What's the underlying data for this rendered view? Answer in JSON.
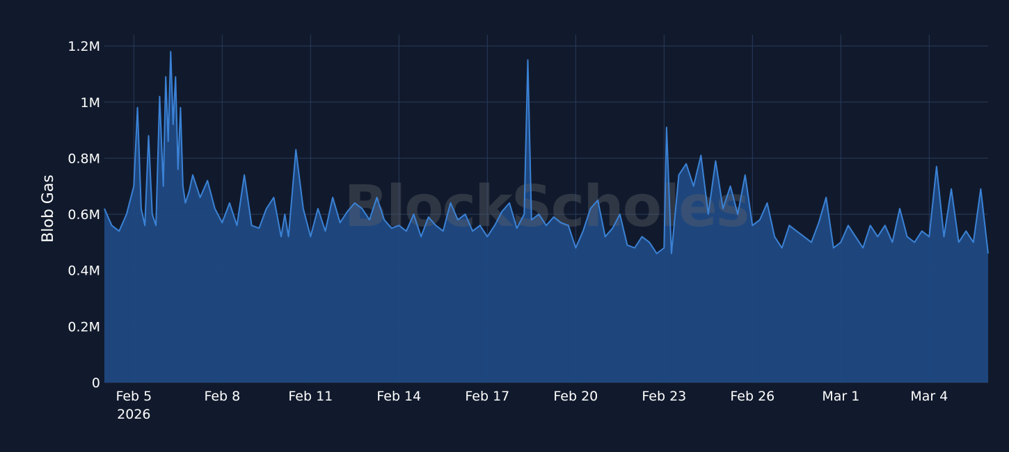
{
  "chart_data": {
    "type": "area",
    "watermark": "BlockScholes",
    "ylabel": "Blob Gas",
    "xlabel": "",
    "title": "",
    "grid": true,
    "ylim": [
      0,
      1240000
    ],
    "xlim": [
      "2026-02-04T00:00",
      "2026-03-06T00:00"
    ],
    "y_ticks": [
      {
        "value": 0,
        "label": "0"
      },
      {
        "value": 200000,
        "label": "0.2M"
      },
      {
        "value": 400000,
        "label": "0.4M"
      },
      {
        "value": 600000,
        "label": "0.6M"
      },
      {
        "value": 800000,
        "label": "0.8M"
      },
      {
        "value": 1000000,
        "label": "1M"
      },
      {
        "value": 1200000,
        "label": "1.2M"
      }
    ],
    "x_ticks": [
      {
        "date": "2026-02-05",
        "label": "Feb 5",
        "sublabel": "2026"
      },
      {
        "date": "2026-02-08",
        "label": "Feb 8"
      },
      {
        "date": "2026-02-11",
        "label": "Feb 11"
      },
      {
        "date": "2026-02-14",
        "label": "Feb 14"
      },
      {
        "date": "2026-02-17",
        "label": "Feb 17"
      },
      {
        "date": "2026-02-20",
        "label": "Feb 20"
      },
      {
        "date": "2026-02-23",
        "label": "Feb 23"
      },
      {
        "date": "2026-02-26",
        "label": "Feb 26"
      },
      {
        "date": "2026-03-01",
        "label": "Mar 1"
      },
      {
        "date": "2026-03-04",
        "label": "Mar 4"
      }
    ],
    "colors": {
      "line": "#3b82d6",
      "fill": "#1f4a84",
      "grid": "#2a3a5c",
      "background": "#111a2c"
    },
    "series": [
      {
        "x": [
          "2026-02-04T00:00",
          "2026-02-04T06:00",
          "2026-02-04T12:00",
          "2026-02-04T18:00",
          "2026-02-05T00:00",
          "2026-02-05T03:00",
          "2026-02-05T06:00",
          "2026-02-05T09:00",
          "2026-02-05T12:00",
          "2026-02-05T15:00",
          "2026-02-05T18:00",
          "2026-02-05T21:00",
          "2026-02-06T00:00",
          "2026-02-06T02:00",
          "2026-02-06T04:00",
          "2026-02-06T06:00",
          "2026-02-06T08:00",
          "2026-02-06T10:00",
          "2026-02-06T12:00",
          "2026-02-06T14:00",
          "2026-02-06T16:00",
          "2026-02-06T18:00",
          "2026-02-06T21:00",
          "2026-02-07T00:00",
          "2026-02-07T06:00",
          "2026-02-07T12:00",
          "2026-02-07T18:00",
          "2026-02-08T00:00",
          "2026-02-08T06:00",
          "2026-02-08T12:00",
          "2026-02-08T18:00",
          "2026-02-09T00:00",
          "2026-02-09T06:00",
          "2026-02-09T12:00",
          "2026-02-09T18:00",
          "2026-02-10T00:00",
          "2026-02-10T03:00",
          "2026-02-10T06:00",
          "2026-02-10T12:00",
          "2026-02-10T18:00",
          "2026-02-11T00:00",
          "2026-02-11T06:00",
          "2026-02-11T12:00",
          "2026-02-11T18:00",
          "2026-02-12T00:00",
          "2026-02-12T06:00",
          "2026-02-12T12:00",
          "2026-02-12T18:00",
          "2026-02-13T00:00",
          "2026-02-13T06:00",
          "2026-02-13T12:00",
          "2026-02-13T18:00",
          "2026-02-14T00:00",
          "2026-02-14T06:00",
          "2026-02-14T12:00",
          "2026-02-14T18:00",
          "2026-02-15T00:00",
          "2026-02-15T06:00",
          "2026-02-15T12:00",
          "2026-02-15T18:00",
          "2026-02-16T00:00",
          "2026-02-16T06:00",
          "2026-02-16T12:00",
          "2026-02-16T18:00",
          "2026-02-17T00:00",
          "2026-02-17T06:00",
          "2026-02-17T12:00",
          "2026-02-17T18:00",
          "2026-02-18T00:00",
          "2026-02-18T06:00",
          "2026-02-18T09:00",
          "2026-02-18T12:00",
          "2026-02-18T18:00",
          "2026-02-19T00:00",
          "2026-02-19T06:00",
          "2026-02-19T12:00",
          "2026-02-19T18:00",
          "2026-02-20T00:00",
          "2026-02-20T06:00",
          "2026-02-20T12:00",
          "2026-02-20T18:00",
          "2026-02-21T00:00",
          "2026-02-21T06:00",
          "2026-02-21T12:00",
          "2026-02-21T18:00",
          "2026-02-22T00:00",
          "2026-02-22T06:00",
          "2026-02-22T12:00",
          "2026-02-22T18:00",
          "2026-02-23T00:00",
          "2026-02-23T02:00",
          "2026-02-23T06:00",
          "2026-02-23T12:00",
          "2026-02-23T18:00",
          "2026-02-24T00:00",
          "2026-02-24T06:00",
          "2026-02-24T12:00",
          "2026-02-24T18:00",
          "2026-02-25T00:00",
          "2026-02-25T06:00",
          "2026-02-25T12:00",
          "2026-02-25T18:00",
          "2026-02-26T00:00",
          "2026-02-26T06:00",
          "2026-02-26T12:00",
          "2026-02-26T18:00",
          "2026-02-27T00:00",
          "2026-02-27T06:00",
          "2026-02-27T12:00",
          "2026-02-27T18:00",
          "2026-02-28T00:00",
          "2026-02-28T06:00",
          "2026-02-28T12:00",
          "2026-02-28T18:00",
          "2026-03-01T00:00",
          "2026-03-01T06:00",
          "2026-03-01T12:00",
          "2026-03-01T18:00",
          "2026-03-02T00:00",
          "2026-03-02T06:00",
          "2026-03-02T12:00",
          "2026-03-02T18:00",
          "2026-03-03T00:00",
          "2026-03-03T06:00",
          "2026-03-03T12:00",
          "2026-03-03T18:00",
          "2026-03-04T00:00",
          "2026-03-04T06:00",
          "2026-03-04T12:00",
          "2026-03-04T18:00",
          "2026-03-05T00:00",
          "2026-03-05T06:00",
          "2026-03-05T12:00",
          "2026-03-05T18:00",
          "2026-03-06T00:00"
        ],
        "values": [
          620000,
          560000,
          540000,
          600000,
          700000,
          980000,
          620000,
          560000,
          880000,
          600000,
          560000,
          1020000,
          700000,
          1090000,
          860000,
          1180000,
          920000,
          1090000,
          760000,
          980000,
          700000,
          640000,
          680000,
          740000,
          660000,
          720000,
          620000,
          570000,
          640000,
          560000,
          740000,
          560000,
          550000,
          620000,
          660000,
          520000,
          600000,
          520000,
          830000,
          620000,
          520000,
          620000,
          540000,
          660000,
          570000,
          610000,
          640000,
          620000,
          580000,
          660000,
          580000,
          550000,
          560000,
          540000,
          600000,
          520000,
          590000,
          560000,
          540000,
          640000,
          580000,
          600000,
          540000,
          560000,
          520000,
          560000,
          610000,
          640000,
          550000,
          600000,
          1150000,
          580000,
          600000,
          560000,
          590000,
          570000,
          560000,
          480000,
          540000,
          620000,
          650000,
          520000,
          550000,
          600000,
          490000,
          480000,
          520000,
          500000,
          460000,
          480000,
          910000,
          460000,
          740000,
          780000,
          700000,
          810000,
          600000,
          790000,
          620000,
          700000,
          600000,
          740000,
          560000,
          580000,
          640000,
          520000,
          480000,
          560000,
          540000,
          520000,
          500000,
          570000,
          660000,
          480000,
          500000,
          560000,
          520000,
          480000,
          560000,
          520000,
          560000,
          500000,
          620000,
          520000,
          500000,
          540000,
          520000,
          770000,
          520000,
          690000,
          500000,
          540000,
          500000,
          690000,
          460000
        ]
      }
    ]
  }
}
